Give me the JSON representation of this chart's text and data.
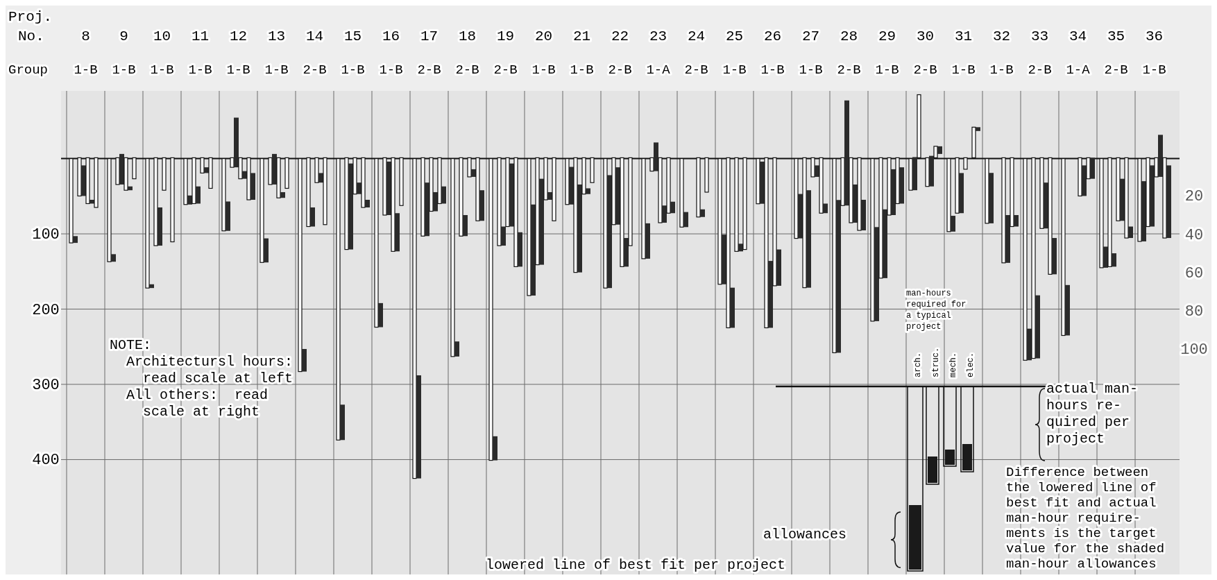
{
  "chart_data": {
    "type": "bar",
    "xlabel": "Proj.\nNo.",
    "categories": [
      "8",
      "9",
      "10",
      "11",
      "12",
      "13",
      "14",
      "15",
      "16",
      "17",
      "18",
      "19",
      "20",
      "21",
      "22",
      "23",
      "24",
      "25",
      "26",
      "27",
      "28",
      "29",
      "30",
      "31",
      "32",
      "33",
      "34",
      "35",
      "36"
    ],
    "series": [
      {
        "color": "#ffffff",
        "values": [
          112,
          137,
          172,
          61,
          96,
          138,
          283,
          374,
          224,
          425,
          263,
          401,
          182,
          61,
          172,
          133,
          91,
          167,
          60,
          106,
          258,
          216,
          42,
          97,
          86,
          268,
          235,
          145,
          110
        ]
      },
      {
        "color": "#2b2b2b",
        "base": [
          103,
          127,
          167,
          49,
          57,
          106,
          253,
          327,
          192,
          288,
          243,
          369,
          61,
          11,
          22,
          86,
          71,
          101,
          4,
          47,
          55,
          91,
          -2,
          76,
          19,
          226,
          168,
          117,
          30
        ],
        "values": [
          9,
          10,
          5,
          12,
          39,
          32,
          30,
          47,
          32,
          137,
          20,
          32,
          121,
          50,
          150,
          47,
          20,
          66,
          56,
          59,
          203,
          125,
          44,
          21,
          67,
          42,
          67,
          28,
          80
        ]
      },
      {
        "color": "#ffffff",
        "axis": "y2",
        "values": [
          20,
          14,
          46,
          24,
          5,
          14,
          36,
          48,
          30,
          41,
          41,
          46,
          56,
          60,
          35,
          7,
          null,
          89,
          89,
          68,
          25,
          63,
          -33,
          29,
          null,
          105,
          null,
          57,
          36
        ]
      },
      {
        "color": "#2b2b2b",
        "axis": "y2",
        "base": [
          4,
          -2,
          26,
          15,
          -21,
          -2,
          26,
          3,
          2,
          13,
          30,
          36,
          11,
          14,
          5,
          -8,
          null,
          68,
          54,
          17,
          -30,
          27,
          null,
          8,
          null,
          72,
          null,
          50,
          4
        ],
        "values": [
          16,
          16,
          20,
          9,
          26,
          16,
          10,
          45,
          28,
          28,
          11,
          10,
          45,
          46,
          30,
          15,
          null,
          21,
          35,
          51,
          55,
          36,
          null,
          21,
          null,
          33,
          null,
          7,
          32
        ]
      },
      {
        "color": "#ffffff",
        "axis": "y2",
        "values": [
          24,
          17,
          17,
          8,
          11,
          21,
          13,
          19,
          49,
          28,
          10,
          36,
          22,
          19,
          57,
          34,
          31,
          49,
          67,
          10,
          34,
          30,
          15,
          6,
          55,
          37,
          20,
          33,
          10
        ]
      },
      {
        "color": "#2b2b2b",
        "axis": "y2",
        "base": [
          22,
          15,
          null,
          5,
          7,
          18,
          8,
          13,
          29,
          18,
          6,
          3,
          18,
          16,
          42,
          25,
          27,
          45,
          48,
          4,
          14,
          6,
          -1,
          null,
          30,
          13,
          4,
          11,
          -12
        ],
        "values": [
          2,
          2,
          null,
          3,
          4,
          3,
          5,
          6,
          20,
          10,
          4,
          33,
          4,
          3,
          15,
          9,
          4,
          4,
          19,
          6,
          20,
          24,
          16,
          null,
          25,
          24,
          16,
          22,
          22
        ]
      },
      {
        "color": "#ffffff",
        "axis": "y2",
        "values": [
          26,
          11,
          44,
          16,
          22,
          16,
          35,
          26,
          25,
          24,
          33,
          57,
          33,
          13,
          46,
          29,
          18,
          48,
          null,
          29,
          38,
          24,
          -6,
          -16,
          36,
          61,
          11,
          42,
          42
        ]
      },
      {
        "color": "#2b2b2b",
        "axis": "y2",
        "base": [
          null,
          null,
          null,
          null,
          8,
          null,
          null,
          22,
          null,
          15,
          17,
          39,
          null,
          null,
          null,
          23,
          null,
          null,
          null,
          24,
          22,
          5,
          -6,
          -16,
          30,
          42,
          0,
          36,
          4
        ],
        "values": [
          null,
          null,
          null,
          null,
          14,
          null,
          null,
          4,
          null,
          9,
          16,
          18,
          null,
          null,
          null,
          6,
          null,
          null,
          null,
          5,
          16,
          19,
          4,
          2,
          6,
          19,
          11,
          6,
          38
        ]
      }
    ],
    "ylim": [
      560,
      -90
    ],
    "yticks": [
      100,
      200,
      300,
      400
    ],
    "y2lim": [
      221,
      -35
    ],
    "y2ticks": [
      20,
      40,
      60,
      80,
      100
    ],
    "grid": true,
    "annotations": [
      "Group",
      "1-B",
      "1-B",
      "1-B",
      "1-B",
      "1-B",
      "1-B",
      "2-B",
      "1-B",
      "1-B",
      "2-B",
      "2-B",
      "2-B",
      "1-B",
      "1-B",
      "2-B",
      "1-A",
      "2-B",
      "1-B",
      "1-B",
      "1-B",
      "2-B",
      "1-B",
      "2-B",
      "1-B",
      "1-B",
      "2-B",
      "1-A",
      "2-B",
      "1-B",
      "NOTE:\n  Architectursl hours:\n    read scale at left\n  All others:  read\n    scale at right",
      "man-hours\nrequired for\na typical\nproject",
      "arch.",
      "struc.",
      "mech.",
      "elec.",
      "actual man-\nhours re-\nquired per\nproject",
      "allowances",
      "lowered line of best fit per project",
      "Difference between\nthe lowered line of\nbest fit and actual\nman-hour require-\nments is the target\nvalue for the shaded\nman-hour allowances"
    ]
  }
}
